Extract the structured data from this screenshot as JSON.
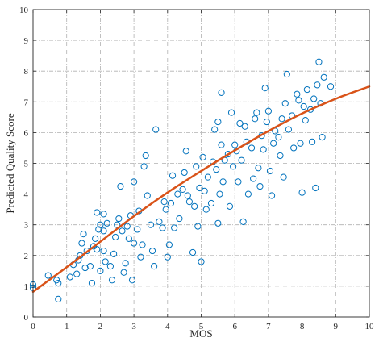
{
  "chart_data": {
    "type": "scatter",
    "title": "",
    "xlabel": "MOS",
    "ylabel": "Predicted Quality Score",
    "xlim": [
      0,
      10
    ],
    "ylim": [
      0,
      10
    ],
    "xticks": [
      "0",
      "1",
      "2",
      "3",
      "4",
      "5",
      "6",
      "7",
      "8",
      "9",
      "10"
    ],
    "yticks": [
      "0",
      "1",
      "2",
      "3",
      "4",
      "5",
      "6",
      "7",
      "8",
      "9",
      "10"
    ],
    "grid": true,
    "grid_style": "dash-dot",
    "legend": "none",
    "colors": {
      "points": "#0072BD",
      "fit_line": "#D95319",
      "grid": "#b0b0b0",
      "axes": "#262626"
    },
    "series": [
      {
        "type": "scatter",
        "marker": "circle-open",
        "points": [
          [
            0.0,
            1.05
          ],
          [
            0.0,
            0.95
          ],
          [
            0.45,
            1.35
          ],
          [
            0.7,
            1.2
          ],
          [
            0.75,
            1.1
          ],
          [
            0.75,
            0.58
          ],
          [
            1.1,
            1.3
          ],
          [
            1.2,
            1.7
          ],
          [
            1.3,
            1.4
          ],
          [
            1.35,
            1.85
          ],
          [
            1.4,
            2.0
          ],
          [
            1.45,
            2.4
          ],
          [
            1.5,
            2.7
          ],
          [
            1.55,
            1.6
          ],
          [
            1.6,
            2.15
          ],
          [
            1.7,
            1.65
          ],
          [
            1.75,
            1.1
          ],
          [
            1.8,
            2.3
          ],
          [
            1.85,
            2.55
          ],
          [
            1.9,
            2.2
          ],
          [
            1.9,
            3.4
          ],
          [
            1.95,
            2.85
          ],
          [
            2.0,
            3.0
          ],
          [
            2.0,
            1.5
          ],
          [
            2.1,
            2.15
          ],
          [
            2.1,
            2.8
          ],
          [
            2.1,
            3.35
          ],
          [
            2.15,
            1.8
          ],
          [
            2.2,
            3.05
          ],
          [
            2.3,
            1.65
          ],
          [
            2.35,
            1.2
          ],
          [
            2.4,
            2.05
          ],
          [
            2.45,
            2.6
          ],
          [
            2.5,
            3.0
          ],
          [
            2.55,
            3.2
          ],
          [
            2.6,
            4.25
          ],
          [
            2.65,
            2.8
          ],
          [
            2.7,
            1.45
          ],
          [
            2.75,
            1.75
          ],
          [
            2.8,
            2.95
          ],
          [
            2.85,
            2.55
          ],
          [
            2.9,
            3.3
          ],
          [
            2.95,
            1.2
          ],
          [
            3.0,
            2.4
          ],
          [
            3.0,
            4.4
          ],
          [
            3.1,
            2.85
          ],
          [
            3.15,
            3.45
          ],
          [
            3.2,
            1.95
          ],
          [
            3.25,
            2.35
          ],
          [
            3.3,
            4.9
          ],
          [
            3.35,
            5.25
          ],
          [
            3.4,
            3.95
          ],
          [
            3.5,
            3.0
          ],
          [
            3.55,
            2.15
          ],
          [
            3.6,
            1.65
          ],
          [
            3.65,
            6.1
          ],
          [
            3.75,
            3.1
          ],
          [
            3.85,
            2.9
          ],
          [
            3.9,
            3.75
          ],
          [
            3.95,
            3.5
          ],
          [
            4.0,
            1.95
          ],
          [
            4.05,
            2.35
          ],
          [
            4.1,
            3.7
          ],
          [
            4.15,
            4.6
          ],
          [
            4.2,
            2.9
          ],
          [
            4.3,
            4.0
          ],
          [
            4.35,
            3.2
          ],
          [
            4.45,
            4.15
          ],
          [
            4.5,
            4.7
          ],
          [
            4.55,
            5.4
          ],
          [
            4.6,
            3.95
          ],
          [
            4.65,
            3.75
          ],
          [
            4.75,
            2.1
          ],
          [
            4.8,
            3.6
          ],
          [
            4.85,
            4.9
          ],
          [
            4.9,
            2.95
          ],
          [
            4.95,
            4.2
          ],
          [
            5.0,
            1.8
          ],
          [
            5.05,
            5.2
          ],
          [
            5.1,
            4.1
          ],
          [
            5.15,
            3.5
          ],
          [
            5.2,
            4.55
          ],
          [
            5.3,
            3.7
          ],
          [
            5.35,
            5.05
          ],
          [
            5.4,
            6.1
          ],
          [
            5.45,
            4.8
          ],
          [
            5.5,
            3.05
          ],
          [
            5.5,
            6.35
          ],
          [
            5.55,
            4.0
          ],
          [
            5.6,
            5.6
          ],
          [
            5.6,
            7.3
          ],
          [
            5.65,
            4.4
          ],
          [
            5.7,
            5.1
          ],
          [
            5.8,
            5.3
          ],
          [
            5.85,
            3.6
          ],
          [
            5.9,
            6.65
          ],
          [
            5.95,
            4.9
          ],
          [
            6.0,
            5.6
          ],
          [
            6.05,
            5.4
          ],
          [
            6.1,
            4.4
          ],
          [
            6.15,
            6.3
          ],
          [
            6.2,
            5.1
          ],
          [
            6.25,
            3.1
          ],
          [
            6.3,
            6.2
          ],
          [
            6.35,
            5.7
          ],
          [
            6.4,
            4.0
          ],
          [
            6.5,
            5.5
          ],
          [
            6.55,
            4.5
          ],
          [
            6.6,
            6.45
          ],
          [
            6.65,
            6.65
          ],
          [
            6.7,
            4.85
          ],
          [
            6.75,
            4.25
          ],
          [
            6.8,
            5.9
          ],
          [
            6.85,
            5.45
          ],
          [
            6.9,
            7.45
          ],
          [
            6.95,
            6.35
          ],
          [
            7.0,
            6.7
          ],
          [
            7.05,
            4.75
          ],
          [
            7.1,
            3.95
          ],
          [
            7.15,
            5.65
          ],
          [
            7.2,
            6.05
          ],
          [
            7.3,
            5.85
          ],
          [
            7.35,
            5.25
          ],
          [
            7.4,
            6.45
          ],
          [
            7.45,
            4.55
          ],
          [
            7.5,
            6.95
          ],
          [
            7.55,
            7.9
          ],
          [
            7.6,
            6.1
          ],
          [
            7.7,
            6.55
          ],
          [
            7.75,
            5.5
          ],
          [
            7.85,
            7.25
          ],
          [
            7.9,
            7.05
          ],
          [
            7.95,
            5.65
          ],
          [
            8.0,
            4.05
          ],
          [
            8.05,
            6.85
          ],
          [
            8.1,
            6.4
          ],
          [
            8.15,
            7.4
          ],
          [
            8.25,
            6.75
          ],
          [
            8.3,
            5.7
          ],
          [
            8.35,
            7.1
          ],
          [
            8.4,
            4.2
          ],
          [
            8.45,
            7.55
          ],
          [
            8.5,
            8.3
          ],
          [
            8.55,
            6.95
          ],
          [
            8.6,
            5.85
          ],
          [
            8.65,
            7.8
          ],
          [
            8.85,
            7.5
          ]
        ]
      },
      {
        "type": "line",
        "points": [
          [
            0,
            0.82
          ],
          [
            1,
            1.62
          ],
          [
            2,
            2.45
          ],
          [
            3,
            3.28
          ],
          [
            4,
            4.05
          ],
          [
            5,
            4.75
          ],
          [
            6,
            5.42
          ],
          [
            7,
            6.05
          ],
          [
            8,
            6.62
          ],
          [
            9,
            7.1
          ],
          [
            10,
            7.5
          ]
        ]
      }
    ]
  }
}
